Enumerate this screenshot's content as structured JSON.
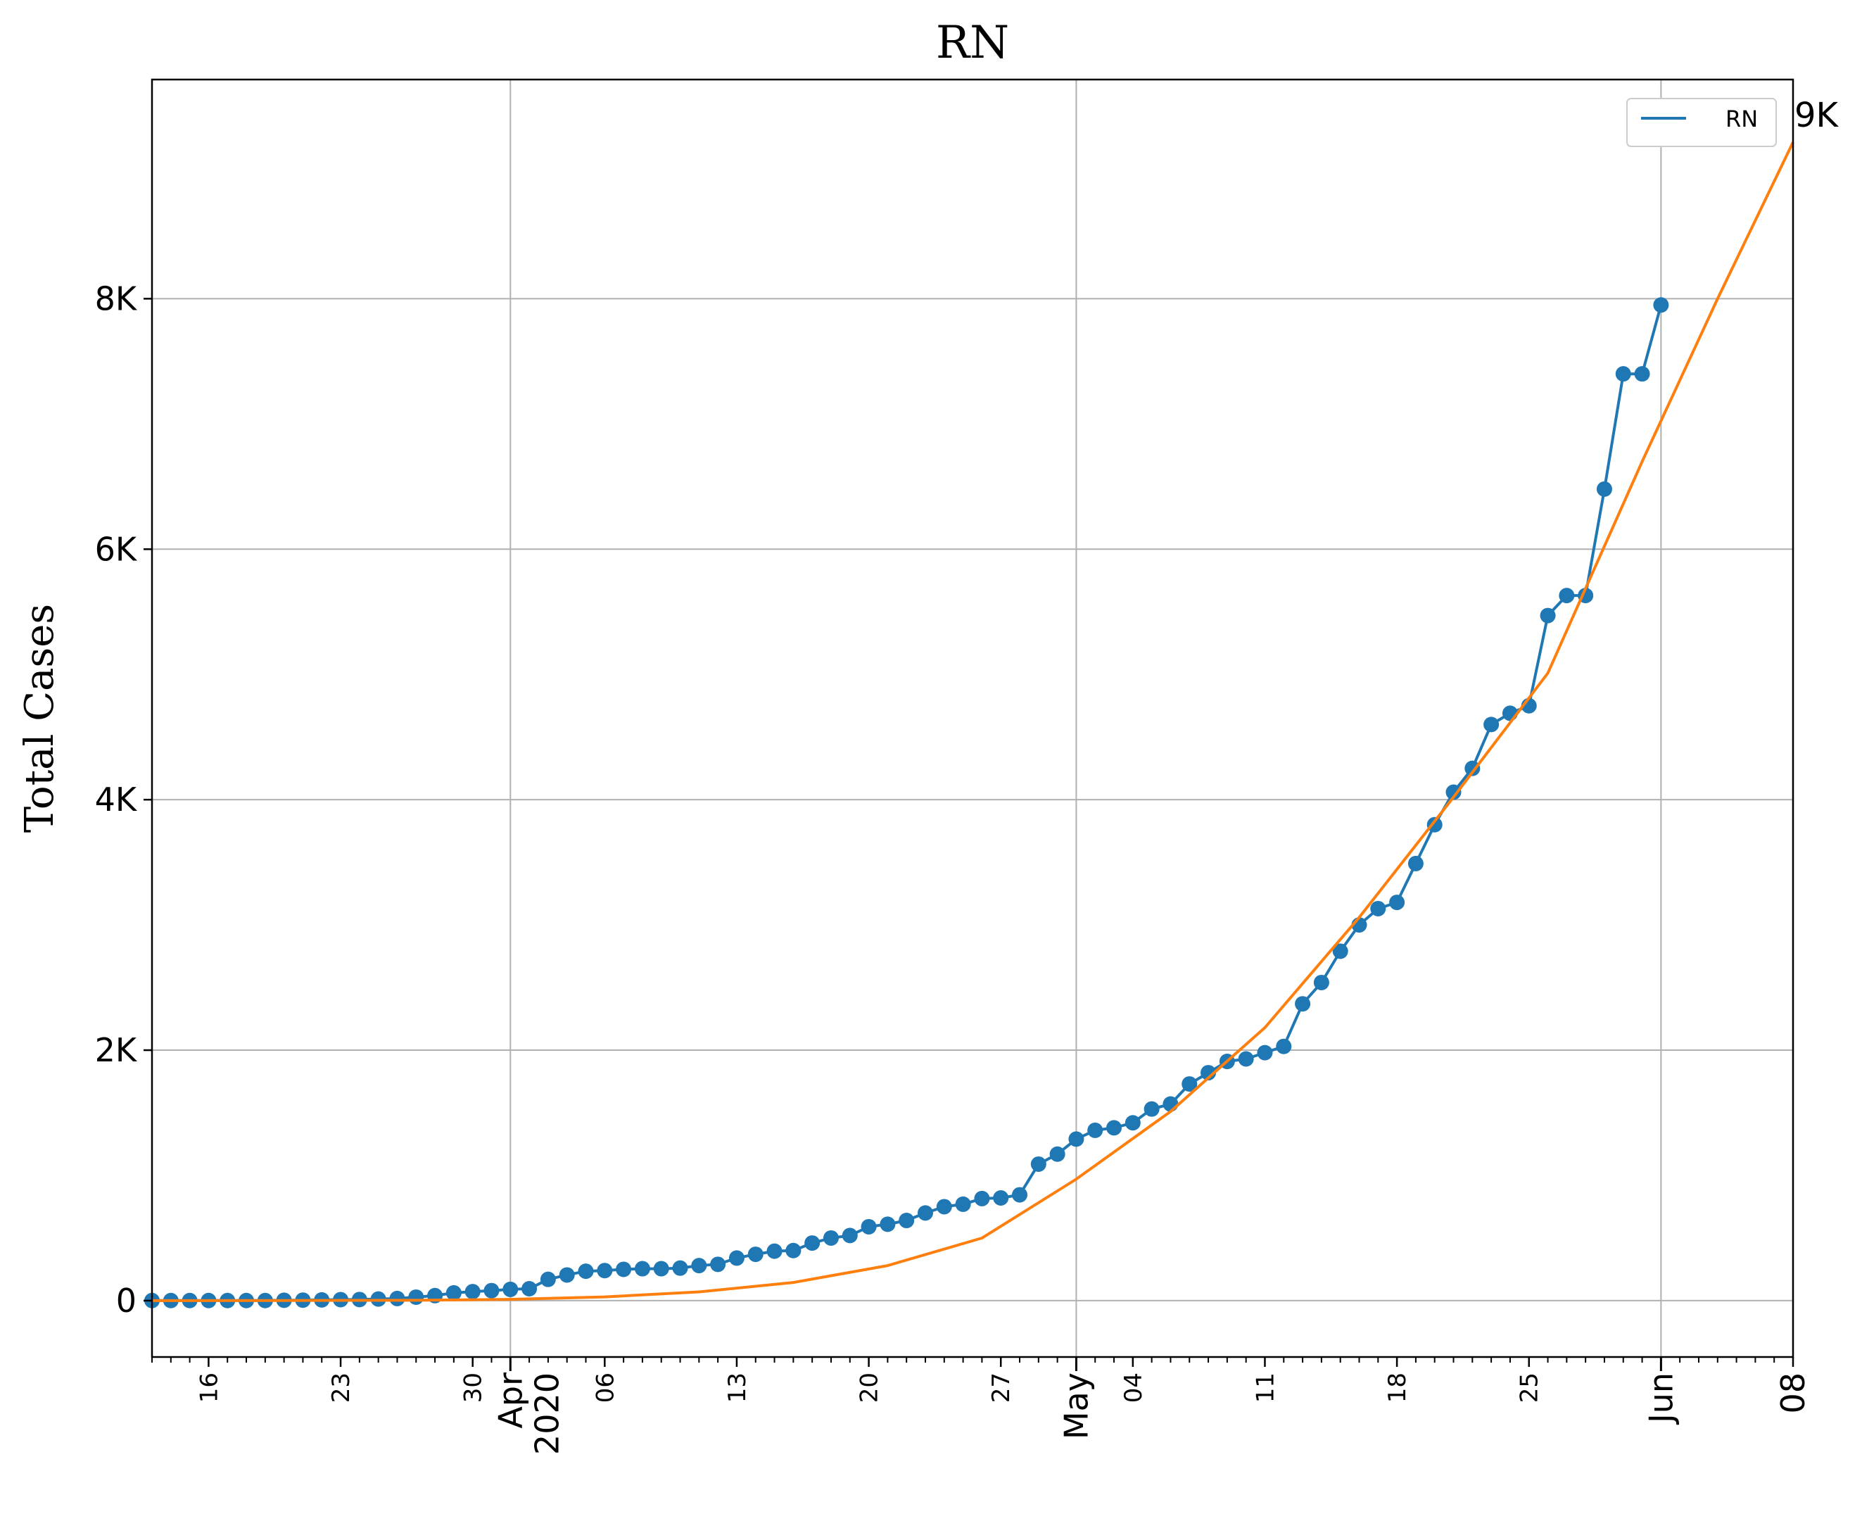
{
  "chart_data": {
    "type": "line",
    "title": "RN",
    "xlabel": "",
    "ylabel": "Total Cases",
    "ylim": [
      -450,
      9750
    ],
    "xlim": [
      "2020-03-13",
      "2020-06-08"
    ],
    "grid": true,
    "legend_position": "top-right",
    "end_label": "9K",
    "y_ticks": [
      {
        "value": 0,
        "label": "0"
      },
      {
        "value": 2000,
        "label": "2K"
      },
      {
        "value": 4000,
        "label": "4K"
      },
      {
        "value": 6000,
        "label": "6K"
      },
      {
        "value": 8000,
        "label": "8K"
      }
    ],
    "x_minor_ticks": [
      {
        "date": "2020-03-16",
        "label": "16"
      },
      {
        "date": "2020-03-23",
        "label": "23"
      },
      {
        "date": "2020-03-30",
        "label": "30"
      },
      {
        "date": "2020-04-06",
        "label": "06"
      },
      {
        "date": "2020-04-13",
        "label": "13"
      },
      {
        "date": "2020-04-20",
        "label": "20"
      },
      {
        "date": "2020-04-27",
        "label": "27"
      },
      {
        "date": "2020-05-04",
        "label": "04"
      },
      {
        "date": "2020-05-11",
        "label": "11"
      },
      {
        "date": "2020-05-18",
        "label": "18"
      },
      {
        "date": "2020-05-25",
        "label": "25"
      },
      {
        "date": "2020-06-08",
        "label": "08"
      }
    ],
    "x_major_ticks": [
      {
        "date": "2020-04-01",
        "label": "Apr\n2020"
      },
      {
        "date": "2020-05-01",
        "label": "May"
      },
      {
        "date": "2020-06-01",
        "label": "Jun"
      }
    ],
    "series": [
      {
        "name": "RN",
        "color": "#1f77b4",
        "marker": "circle",
        "x": [
          "2020-03-13",
          "2020-03-14",
          "2020-03-15",
          "2020-03-16",
          "2020-03-17",
          "2020-03-18",
          "2020-03-19",
          "2020-03-20",
          "2020-03-21",
          "2020-03-22",
          "2020-03-23",
          "2020-03-24",
          "2020-03-25",
          "2020-03-26",
          "2020-03-27",
          "2020-03-28",
          "2020-03-29",
          "2020-03-30",
          "2020-03-31",
          "2020-04-01",
          "2020-04-02",
          "2020-04-03",
          "2020-04-04",
          "2020-04-05",
          "2020-04-06",
          "2020-04-07",
          "2020-04-08",
          "2020-04-09",
          "2020-04-10",
          "2020-04-11",
          "2020-04-12",
          "2020-04-13",
          "2020-04-14",
          "2020-04-15",
          "2020-04-16",
          "2020-04-17",
          "2020-04-18",
          "2020-04-19",
          "2020-04-20",
          "2020-04-21",
          "2020-04-22",
          "2020-04-23",
          "2020-04-24",
          "2020-04-25",
          "2020-04-26",
          "2020-04-27",
          "2020-04-28",
          "2020-04-29",
          "2020-04-30",
          "2020-05-01",
          "2020-05-02",
          "2020-05-03",
          "2020-05-04",
          "2020-05-05",
          "2020-05-06",
          "2020-05-07",
          "2020-05-08",
          "2020-05-09",
          "2020-05-10",
          "2020-05-11",
          "2020-05-12",
          "2020-05-13",
          "2020-05-14",
          "2020-05-15",
          "2020-05-16",
          "2020-05-17",
          "2020-05-18",
          "2020-05-19",
          "2020-05-20",
          "2020-05-21",
          "2020-05-22",
          "2020-05-23",
          "2020-05-24",
          "2020-05-25",
          "2020-05-26",
          "2020-05-27",
          "2020-05-28",
          "2020-05-29",
          "2020-05-30",
          "2020-05-31",
          "2020-06-01"
        ],
        "values": [
          1,
          1,
          1,
          1,
          1,
          1,
          1,
          3,
          4,
          6,
          8,
          9,
          13,
          17,
          28,
          40,
          62,
          72,
          80,
          90,
          95,
          170,
          205,
          235,
          240,
          250,
          255,
          255,
          260,
          280,
          290,
          340,
          370,
          395,
          400,
          460,
          500,
          520,
          590,
          610,
          640,
          700,
          750,
          770,
          815,
          820,
          845,
          1090,
          1170,
          1290,
          1360,
          1380,
          1420,
          1530,
          1570,
          1730,
          1820,
          1910,
          1930,
          1980,
          2030,
          2370,
          2540,
          2790,
          3000,
          3130,
          3180,
          3490,
          3800,
          4060,
          4250,
          4600,
          4690,
          4750,
          5470,
          5630,
          5630,
          6480,
          7400,
          7400,
          7950
        ]
      },
      {
        "name": "",
        "color": "#ff7f0e",
        "marker": "none",
        "x": [
          "2020-03-13",
          "2020-03-20",
          "2020-03-27",
          "2020-04-01",
          "2020-04-06",
          "2020-04-11",
          "2020-04-16",
          "2020-04-21",
          "2020-04-26",
          "2020-05-01",
          "2020-05-06",
          "2020-05-11",
          "2020-05-16",
          "2020-05-21",
          "2020-05-26",
          "2020-05-31",
          "2020-06-04",
          "2020-06-08"
        ],
        "values": [
          0,
          1,
          3,
          10,
          30,
          70,
          145,
          280,
          500,
          970,
          1510,
          2180,
          3060,
          4020,
          5010,
          6700,
          8000,
          9250
        ]
      }
    ]
  }
}
